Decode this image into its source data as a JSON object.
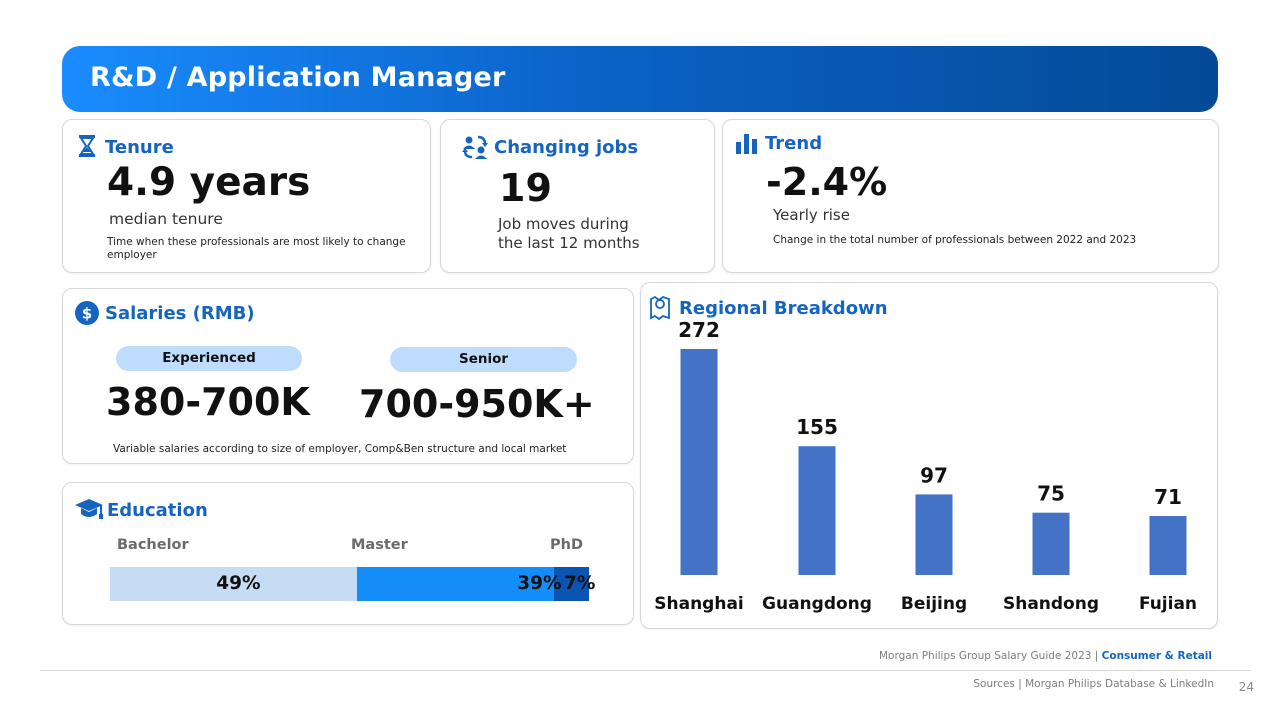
{
  "header": {
    "title": "R&D / Application Manager"
  },
  "tenure": {
    "title": "Tenure",
    "icon": "hourglass-icon",
    "value": "4.9 years",
    "label": "median tenure",
    "note": "Time when these professionals are most likely to  change employer"
  },
  "changing_jobs": {
    "title": "Changing jobs",
    "icon": "people-swap-icon",
    "value": "19",
    "label_line1": "Job moves during",
    "label_line2": "the last 12 months"
  },
  "trend": {
    "title": "Trend",
    "icon": "bar-chart-icon",
    "value": "-2.4%",
    "label": "Yearly rise",
    "note": "Change in the total number of professionals between 2022 and 2023"
  },
  "salaries": {
    "title": "Salaries (RMB)",
    "icon": "dollar-icon",
    "levels": [
      {
        "label": "Experienced",
        "range": "380-700K"
      },
      {
        "label": "Senior",
        "range": "700-950K+"
      }
    ],
    "note": "Variable salaries according to size of employer, Comp&Ben structure and local market"
  },
  "education": {
    "title": "Education",
    "icon": "graduation-cap-icon",
    "segments": [
      {
        "label": "Bachelor",
        "percent": 49,
        "text": "49%",
        "color": "#c6dcf5"
      },
      {
        "label": "Master",
        "percent": 39,
        "text": "39%",
        "color": "#148df8"
      },
      {
        "label": "PhD",
        "percent": 7,
        "text": "7%",
        "color": "#0a55b3"
      }
    ]
  },
  "regional": {
    "title": "Regional Breakdown",
    "icon": "map-pin-icon"
  },
  "chart_data": {
    "type": "bar",
    "title": "Regional Breakdown",
    "categories": [
      "Shanghai",
      "Guangdong",
      "Beijing",
      "Shandong",
      "Fujian"
    ],
    "values": [
      272,
      155,
      97,
      75,
      71
    ],
    "value_labels": [
      "272",
      "155",
      "97",
      "75",
      "71"
    ],
    "ylim": [
      0,
      272
    ],
    "bar_color": "#4472c4",
    "xlabel": "",
    "ylabel": ""
  },
  "footer": {
    "guide": "Morgan Philips Group Salary Guide 2023 |",
    "guide_highlight": "Consumer & Retail",
    "sources": "Sources | Morgan Philips Database & LinkedIn",
    "page": "24"
  }
}
